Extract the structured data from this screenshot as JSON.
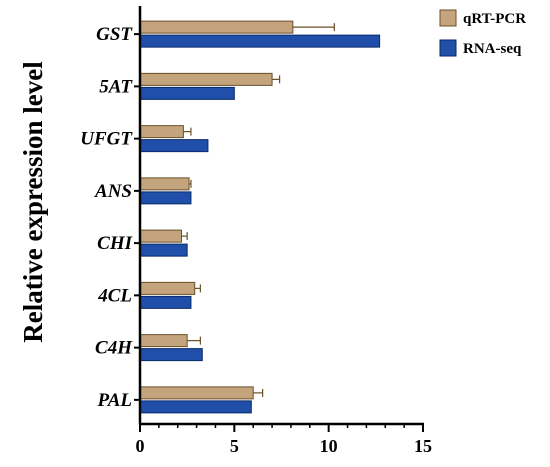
{
  "chart_data": {
    "type": "bar",
    "orientation": "horizontal",
    "title": "",
    "xlabel": "",
    "ylabel": "Relative expression level",
    "xlim": [
      0,
      15
    ],
    "xticks": [
      0,
      5,
      10,
      15
    ],
    "categories": [
      "GST",
      "5AT",
      "UFGT",
      "ANS",
      "CHI",
      "4CL",
      "C4H",
      "PAL"
    ],
    "series": [
      {
        "name": "qRT-PCR",
        "color": "#c4a47c",
        "values": [
          8.1,
          7.0,
          2.3,
          2.6,
          2.2,
          2.9,
          2.5,
          6.0
        ],
        "errors": [
          2.2,
          0.4,
          0.4,
          0.1,
          0.3,
          0.3,
          0.7,
          0.5
        ]
      },
      {
        "name": "RNA-seq",
        "color": "#1f4fa8",
        "values": [
          12.7,
          5.0,
          3.6,
          2.7,
          2.5,
          2.7,
          3.3,
          5.9
        ],
        "errors": [
          0,
          0,
          0,
          0,
          0,
          0,
          0,
          0
        ]
      }
    ],
    "legend_position": "top-right",
    "grid": false
  }
}
